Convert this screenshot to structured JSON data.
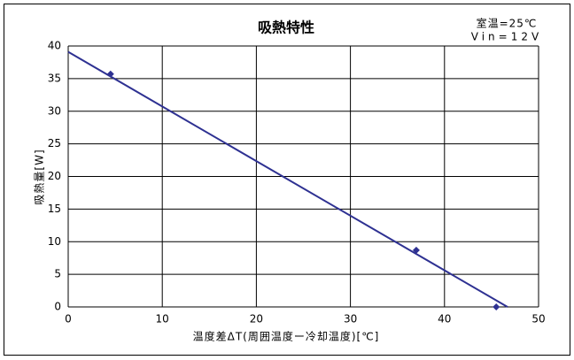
{
  "chart_data": {
    "type": "line",
    "title": "吸熱特性",
    "annotations": [
      "室温=25℃",
      "Vin=12V"
    ],
    "x_label": "温度差ΔT(周囲温度ー冷却温度)[℃]",
    "y_label": "吸熱量[W]",
    "line": {
      "x": [
        0,
        46.7
      ],
      "values": [
        39.1,
        0
      ],
      "color": "#2e3192"
    },
    "points": {
      "x": [
        4.5,
        37,
        45.5
      ],
      "values": [
        35.7,
        8.7,
        0
      ],
      "color": "#2e3192",
      "marker": "diamond"
    },
    "xlim": [
      0,
      50
    ],
    "xticks": [
      0,
      10,
      20,
      30,
      40,
      50
    ],
    "ylim": [
      0,
      40
    ],
    "yticks": [
      0,
      5,
      10,
      15,
      20,
      25,
      30,
      35,
      40
    ],
    "grid": true
  }
}
